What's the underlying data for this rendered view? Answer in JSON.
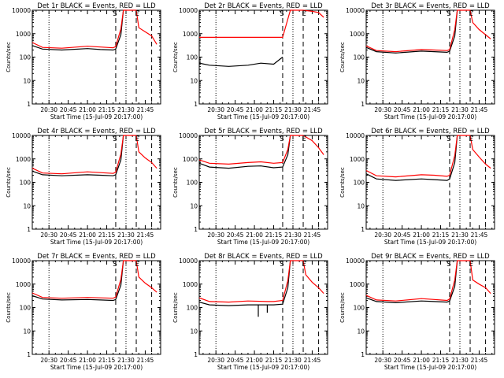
{
  "chart_data": [
    {
      "type": "line",
      "title": "Det 1r BLACK = Events, RED = LLD",
      "xlabel": "Start Time (15-Jul-09 20:17:00)",
      "ylabel": "Counts/sec",
      "x_ticks": [
        "20:30",
        "20:45",
        "21:00",
        "21:15",
        "21:30",
        "21:45"
      ],
      "y_ticks": [
        "1",
        "10",
        "100",
        "1000",
        "10000"
      ],
      "ylim": [
        1,
        10000
      ],
      "log_y": true,
      "markers": [
        "S",
        "E"
      ],
      "dotted_lines": [
        "20:30",
        "21:30"
      ],
      "dashed_lines": [
        "21:22",
        "21:38",
        "21:50"
      ],
      "series": [
        {
          "color": "#000000",
          "x": [
            "20:17",
            "20:25",
            "20:40",
            "21:00",
            "21:10",
            "21:20",
            "21:22",
            "21:26",
            "21:28"
          ],
          "y": [
            310,
            220,
            200,
            230,
            210,
            200,
            220,
            900,
            10000
          ]
        },
        {
          "color": "#ff0000",
          "x": [
            "20:17",
            "20:25",
            "20:40",
            "21:00",
            "21:10",
            "21:20",
            "21:22",
            "21:26",
            "21:28",
            "21:38",
            "21:40",
            "21:45",
            "21:50",
            "21:54"
          ],
          "y": [
            420,
            260,
            240,
            290,
            270,
            250,
            280,
            1600,
            10000,
            10000,
            1800,
            1200,
            800,
            350
          ]
        }
      ]
    },
    {
      "type": "line",
      "title": "Det 2r BLACK = Events, RED = LLD",
      "xlabel": "Start Time (15-Jul-09 20:17:00)",
      "ylabel": "Counts/sec",
      "x_ticks": [
        "20:30",
        "20:45",
        "21:00",
        "21:15",
        "21:30",
        "21:45"
      ],
      "y_ticks": [
        "1",
        "10",
        "100",
        "1000",
        "10000"
      ],
      "ylim": [
        1,
        10000
      ],
      "log_y": true,
      "markers": [
        "S",
        "E"
      ],
      "dotted_lines": [
        "20:30",
        "21:30"
      ],
      "dashed_lines": [
        "21:22",
        "21:38",
        "21:50"
      ],
      "series": [
        {
          "color": "#000000",
          "x": [
            "20:17",
            "20:25",
            "20:40",
            "20:55",
            "21:05",
            "21:15",
            "21:22"
          ],
          "y": [
            55,
            45,
            40,
            45,
            55,
            50,
            100
          ]
        },
        {
          "color": "#ff0000",
          "x": [
            "20:17",
            "20:25",
            "21:00",
            "21:22",
            "21:28",
            "21:38",
            "21:45",
            "21:50",
            "21:54"
          ],
          "y": [
            700,
            700,
            700,
            700,
            10000,
            10000,
            9000,
            8000,
            5000
          ]
        }
      ]
    },
    {
      "type": "line",
      "title": "Det 3r BLACK = Events, RED = LLD",
      "xlabel": "Start Time (15-Jul-09 20:17:00)",
      "ylabel": "Counts/sec",
      "x_ticks": [
        "20:30",
        "20:45",
        "21:00",
        "21:15",
        "21:30",
        "21:45"
      ],
      "y_ticks": [
        "1",
        "10",
        "100",
        "1000",
        "10000"
      ],
      "ylim": [
        1,
        10000
      ],
      "log_y": true,
      "markers": [
        "S",
        "E"
      ],
      "dotted_lines": [
        "20:30",
        "21:30"
      ],
      "dashed_lines": [
        "21:22",
        "21:38",
        "21:50"
      ],
      "series": [
        {
          "color": "#000000",
          "x": [
            "20:17",
            "20:25",
            "20:40",
            "21:00",
            "21:10",
            "21:20",
            "21:22",
            "21:26",
            "21:28"
          ],
          "y": [
            260,
            170,
            150,
            180,
            170,
            160,
            180,
            800,
            10000
          ]
        },
        {
          "color": "#ff0000",
          "x": [
            "20:17",
            "20:25",
            "20:40",
            "21:00",
            "21:10",
            "21:20",
            "21:22",
            "21:26",
            "21:28",
            "21:38",
            "21:40",
            "21:45",
            "21:50",
            "21:54"
          ],
          "y": [
            300,
            190,
            170,
            210,
            200,
            190,
            210,
            1500,
            10000,
            10000,
            3000,
            1500,
            900,
            600
          ]
        }
      ]
    },
    {
      "type": "line",
      "title": "Det 4r BLACK = Events, RED = LLD",
      "xlabel": "Start Time (15-Jul-09 20:17:00)",
      "ylabel": "Counts/sec",
      "x_ticks": [
        "20:30",
        "20:45",
        "21:00",
        "21:15",
        "21:30",
        "21:45"
      ],
      "y_ticks": [
        "1",
        "10",
        "100",
        "1000",
        "10000"
      ],
      "ylim": [
        1,
        10000
      ],
      "log_y": true,
      "markers": [
        "S",
        "E"
      ],
      "dotted_lines": [
        "20:30",
        "21:30"
      ],
      "dashed_lines": [
        "21:22",
        "21:38",
        "21:50"
      ],
      "series": [
        {
          "color": "#000000",
          "x": [
            "20:17",
            "20:25",
            "20:40",
            "21:00",
            "21:10",
            "21:20",
            "21:22",
            "21:26",
            "21:28"
          ],
          "y": [
            300,
            210,
            190,
            210,
            200,
            190,
            210,
            900,
            10000
          ]
        },
        {
          "color": "#ff0000",
          "x": [
            "20:17",
            "20:25",
            "20:40",
            "21:00",
            "21:10",
            "21:20",
            "21:22",
            "21:26",
            "21:28",
            "21:38",
            "21:40",
            "21:45",
            "21:50",
            "21:54"
          ],
          "y": [
            400,
            250,
            230,
            280,
            260,
            240,
            270,
            1600,
            10000,
            10000,
            2000,
            1100,
            700,
            400
          ]
        }
      ]
    },
    {
      "type": "line",
      "title": "Det 5r BLACK = Events, RED = LLD",
      "xlabel": "Start Time (15-Jul-09 20:17:00)",
      "ylabel": "Counts/sec",
      "x_ticks": [
        "20:30",
        "20:45",
        "21:00",
        "21:15",
        "21:30",
        "21:45"
      ],
      "y_ticks": [
        "1",
        "10",
        "100",
        "1000",
        "10000"
      ],
      "ylim": [
        1,
        10000
      ],
      "log_y": true,
      "markers": [
        "S",
        "E"
      ],
      "dotted_lines": [
        "20:30",
        "21:30"
      ],
      "dashed_lines": [
        "21:22",
        "21:38",
        "21:50"
      ],
      "series": [
        {
          "color": "#000000",
          "x": [
            "20:17",
            "20:25",
            "20:40",
            "20:55",
            "21:05",
            "21:15",
            "21:22",
            "21:26",
            "21:28"
          ],
          "y": [
            650,
            450,
            400,
            480,
            500,
            420,
            450,
            1500,
            10000
          ]
        },
        {
          "color": "#ff0000",
          "x": [
            "20:17",
            "20:25",
            "20:40",
            "20:55",
            "21:05",
            "21:15",
            "21:22",
            "21:26",
            "21:28",
            "21:38",
            "21:45",
            "21:50",
            "21:54"
          ],
          "y": [
            900,
            650,
            600,
            700,
            750,
            650,
            700,
            2500,
            10000,
            10000,
            6000,
            3000,
            1500
          ]
        }
      ]
    },
    {
      "type": "line",
      "title": "Det 6r BLACK = Events, RED = LLD",
      "xlabel": "Start Time (15-Jul-09 20:17:00)",
      "ylabel": "Counts/sec",
      "x_ticks": [
        "20:30",
        "20:45",
        "21:00",
        "21:15",
        "21:30",
        "21:45"
      ],
      "y_ticks": [
        "1",
        "10",
        "100",
        "1000",
        "10000"
      ],
      "ylim": [
        1,
        10000
      ],
      "log_y": true,
      "markers": [
        "S",
        "E"
      ],
      "dotted_lines": [
        "20:30",
        "21:30"
      ],
      "dashed_lines": [
        "21:22",
        "21:38",
        "21:50"
      ],
      "series": [
        {
          "color": "#000000",
          "x": [
            "20:17",
            "20:25",
            "20:40",
            "21:00",
            "21:10",
            "21:20",
            "21:22",
            "21:26",
            "21:28"
          ],
          "y": [
            230,
            140,
            120,
            140,
            130,
            120,
            140,
            700,
            10000
          ]
        },
        {
          "color": "#ff0000",
          "x": [
            "20:17",
            "20:25",
            "20:40",
            "21:00",
            "21:10",
            "21:20",
            "21:22",
            "21:26",
            "21:28",
            "21:38",
            "21:40",
            "21:45",
            "21:50",
            "21:54"
          ],
          "y": [
            320,
            190,
            170,
            210,
            200,
            180,
            200,
            1400,
            10000,
            10000,
            2500,
            1200,
            600,
            400
          ]
        }
      ]
    },
    {
      "type": "line",
      "title": "Det 7r BLACK = Events, RED = LLD",
      "xlabel": "Start Time (15-Jul-09 20:17:00)",
      "ylabel": "Counts/sec",
      "x_ticks": [
        "20:30",
        "20:45",
        "21:00",
        "21:15",
        "21:30",
        "21:45"
      ],
      "y_ticks": [
        "1",
        "10",
        "100",
        "1000",
        "10000"
      ],
      "ylim": [
        1,
        10000
      ],
      "log_y": true,
      "markers": [
        "S",
        "E"
      ],
      "dotted_lines": [
        "20:30",
        "21:30"
      ],
      "dashed_lines": [
        "21:22",
        "21:38",
        "21:50"
      ],
      "series": [
        {
          "color": "#000000",
          "x": [
            "20:17",
            "20:25",
            "20:40",
            "21:00",
            "21:10",
            "21:20",
            "21:22",
            "21:26",
            "21:28"
          ],
          "y": [
            320,
            230,
            210,
            220,
            210,
            200,
            220,
            900,
            10000
          ]
        },
        {
          "color": "#ff0000",
          "x": [
            "20:17",
            "20:25",
            "20:40",
            "21:00",
            "21:10",
            "21:20",
            "21:22",
            "21:26",
            "21:28",
            "21:38",
            "21:40",
            "21:45",
            "21:50",
            "21:54"
          ],
          "y": [
            420,
            270,
            250,
            270,
            260,
            250,
            280,
            1600,
            10000,
            10000,
            2000,
            1100,
            700,
            450
          ]
        }
      ]
    },
    {
      "type": "line",
      "title": "Det 8r BLACK = Events, RED = LLD",
      "xlabel": "Start Time (15-Jul-09 20:17:00)",
      "ylabel": "Counts/sec",
      "x_ticks": [
        "20:30",
        "20:45",
        "21:00",
        "21:15",
        "21:30",
        "21:45"
      ],
      "y_ticks": [
        "1",
        "10",
        "100",
        "1000",
        "10000"
      ],
      "ylim": [
        1,
        10000
      ],
      "log_y": true,
      "markers": [
        "S",
        "E"
      ],
      "dotted_lines": [
        "20:30",
        "21:30"
      ],
      "dashed_lines": [
        "21:22",
        "21:38",
        "21:50"
      ],
      "series": [
        {
          "color": "#000000",
          "x": [
            "20:17",
            "20:25",
            "20:40",
            "20:55",
            "21:03",
            "21:03",
            "21:03",
            "21:10",
            "21:10",
            "21:10",
            "21:15",
            "21:22",
            "21:26",
            "21:28"
          ],
          "y": [
            170,
            130,
            120,
            130,
            130,
            40,
            130,
            130,
            60,
            130,
            130,
            140,
            700,
            10000
          ]
        },
        {
          "color": "#ff0000",
          "x": [
            "20:17",
            "20:25",
            "20:40",
            "20:55",
            "21:10",
            "21:15",
            "21:22",
            "21:26",
            "21:28",
            "21:38",
            "21:40",
            "21:45",
            "21:50",
            "21:54"
          ],
          "y": [
            260,
            180,
            170,
            190,
            180,
            180,
            200,
            1400,
            10000,
            10000,
            2500,
            1200,
            700,
            400
          ]
        }
      ]
    },
    {
      "type": "line",
      "title": "Det 9r BLACK = Events, RED = LLD",
      "xlabel": "Start Time (15-Jul-09 20:17:00)",
      "ylabel": "Counts/sec",
      "x_ticks": [
        "20:30",
        "20:45",
        "21:00",
        "21:15",
        "21:30",
        "21:45"
      ],
      "y_ticks": [
        "1",
        "10",
        "100",
        "1000",
        "10000"
      ],
      "ylim": [
        1,
        10000
      ],
      "log_y": true,
      "markers": [
        "S",
        "E"
      ],
      "dotted_lines": [
        "20:30",
        "21:30"
      ],
      "dashed_lines": [
        "21:22",
        "21:38",
        "21:50"
      ],
      "series": [
        {
          "color": "#000000",
          "x": [
            "20:17",
            "20:25",
            "20:40",
            "21:00",
            "21:10",
            "21:20",
            "21:22",
            "21:26",
            "21:28"
          ],
          "y": [
            260,
            180,
            160,
            190,
            180,
            170,
            190,
            800,
            10000
          ]
        },
        {
          "color": "#ff0000",
          "x": [
            "20:17",
            "20:25",
            "20:40",
            "21:00",
            "21:10",
            "21:20",
            "21:22",
            "21:26",
            "21:28",
            "21:38",
            "21:40",
            "21:45",
            "21:50",
            "21:54"
          ],
          "y": [
            330,
            210,
            190,
            240,
            220,
            200,
            230,
            1500,
            10000,
            10000,
            1500,
            1000,
            700,
            400
          ]
        }
      ]
    }
  ]
}
